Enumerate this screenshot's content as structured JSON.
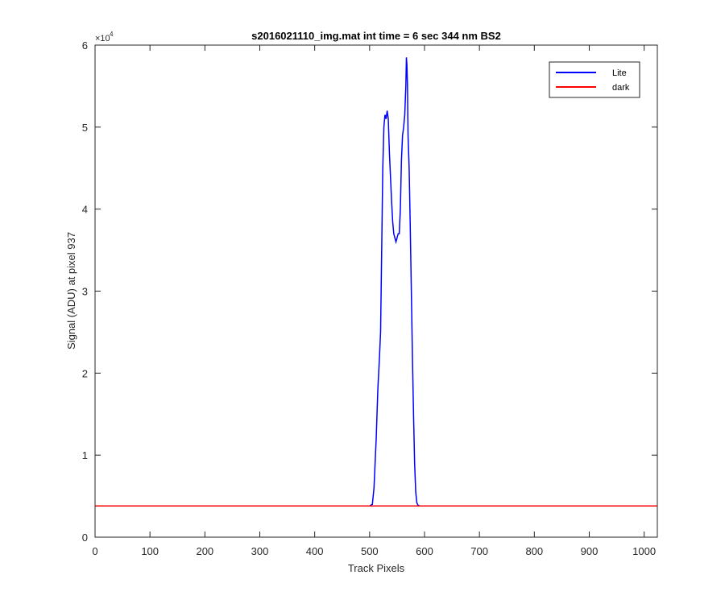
{
  "chart_data": {
    "type": "line",
    "title": "s2016021110_img.mat int time = 6 sec  344 nm BS2",
    "xlabel": "Track Pixels",
    "ylabel": "Signal (ADU) at pixel 937",
    "y_exponent_base": "×10",
    "y_exponent_power": "4",
    "xlim": [
      0,
      1024
    ],
    "ylim": [
      0,
      60000
    ],
    "xticks": [
      0,
      100,
      200,
      300,
      400,
      500,
      600,
      700,
      800,
      900,
      1000
    ],
    "xtick_labels": [
      "0",
      "100",
      "200",
      "300",
      "400",
      "500",
      "600",
      "700",
      "800",
      "900",
      "1000"
    ],
    "yticks": [
      0,
      10000,
      20000,
      30000,
      40000,
      50000,
      60000
    ],
    "ytick_labels": [
      "0",
      "1",
      "2",
      "3",
      "4",
      "5",
      "6"
    ],
    "grid": false,
    "legend_position": "top-right",
    "series": [
      {
        "name": "Lite",
        "color": "#0000ff",
        "x": [
          0,
          100,
          200,
          300,
          400,
          500,
          505,
          508,
          512,
          515,
          518,
          520,
          522,
          524,
          526,
          528,
          530,
          532,
          534,
          536,
          538,
          540,
          542,
          544,
          546,
          548,
          550,
          552,
          554,
          556,
          558,
          560,
          562,
          564,
          566,
          567,
          568,
          569,
          570,
          572,
          574,
          576,
          578,
          580,
          582,
          584,
          586,
          588,
          592,
          600,
          700,
          800,
          900,
          1024
        ],
        "y": [
          3800,
          3800,
          3800,
          3800,
          3800,
          3800,
          4000,
          6000,
          12000,
          18000,
          22000,
          25000,
          35000,
          45000,
          50000,
          51500,
          51000,
          52000,
          51000,
          47000,
          44000,
          41000,
          38500,
          37000,
          36500,
          36000,
          36500,
          37000,
          37000,
          40000,
          46000,
          49000,
          50000,
          51500,
          55000,
          58500,
          57500,
          55000,
          49000,
          45000,
          38000,
          30000,
          22000,
          15000,
          9000,
          5500,
          4200,
          3900,
          3800,
          3800,
          3800,
          3800,
          3800,
          3800
        ]
      },
      {
        "name": "dark",
        "color": "#ff0000",
        "x": [
          0,
          1024
        ],
        "y": [
          3800,
          3800
        ]
      }
    ]
  }
}
